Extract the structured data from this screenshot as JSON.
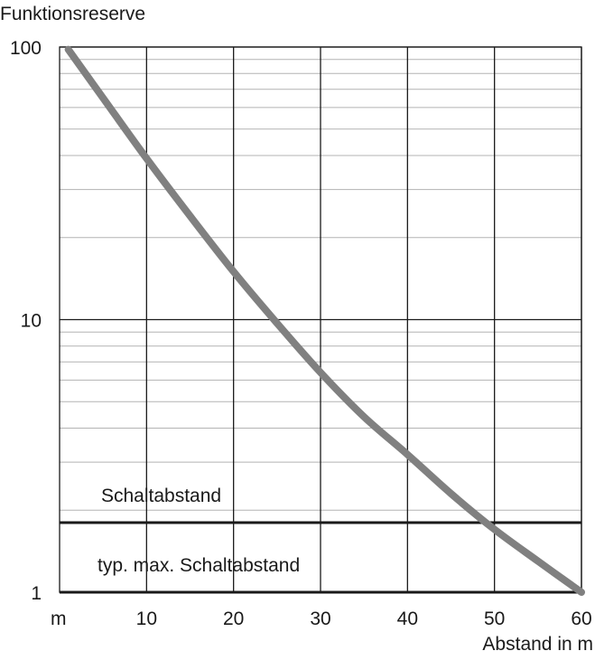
{
  "chart_data": {
    "type": "line",
    "ylabel": "Funktionsreserve",
    "xlabel": "Abstand in m",
    "x_unit_tick": "m",
    "y_scale": "log",
    "xlim": [
      0,
      60
    ],
    "ylim": [
      1,
      100
    ],
    "x_ticks": [
      10,
      20,
      30,
      40,
      50,
      60
    ],
    "x_tick_labels": [
      "10",
      "20",
      "30",
      "40",
      "50",
      "60"
    ],
    "y_ticks": [
      1,
      10,
      100
    ],
    "y_tick_labels": [
      "1",
      "10",
      "100"
    ],
    "grid": true,
    "series": [
      {
        "color": "#808080",
        "points": [
          {
            "x": 1,
            "y": 98
          },
          {
            "x": 5,
            "y": 65
          },
          {
            "x": 10,
            "y": 39
          },
          {
            "x": 15,
            "y": 24
          },
          {
            "x": 20,
            "y": 15
          },
          {
            "x": 25,
            "y": 9.7
          },
          {
            "x": 30,
            "y": 6.4
          },
          {
            "x": 35,
            "y": 4.4
          },
          {
            "x": 40,
            "y": 3.2
          },
          {
            "x": 45,
            "y": 2.3
          },
          {
            "x": 50,
            "y": 1.7
          },
          {
            "x": 55,
            "y": 1.3
          },
          {
            "x": 60,
            "y": 1.0
          }
        ]
      }
    ],
    "reference_lines": [
      {
        "y": 1.8,
        "label": "Schaltabstand"
      },
      {
        "y": 1,
        "label": "typ. max. Schaltabstand"
      }
    ]
  }
}
